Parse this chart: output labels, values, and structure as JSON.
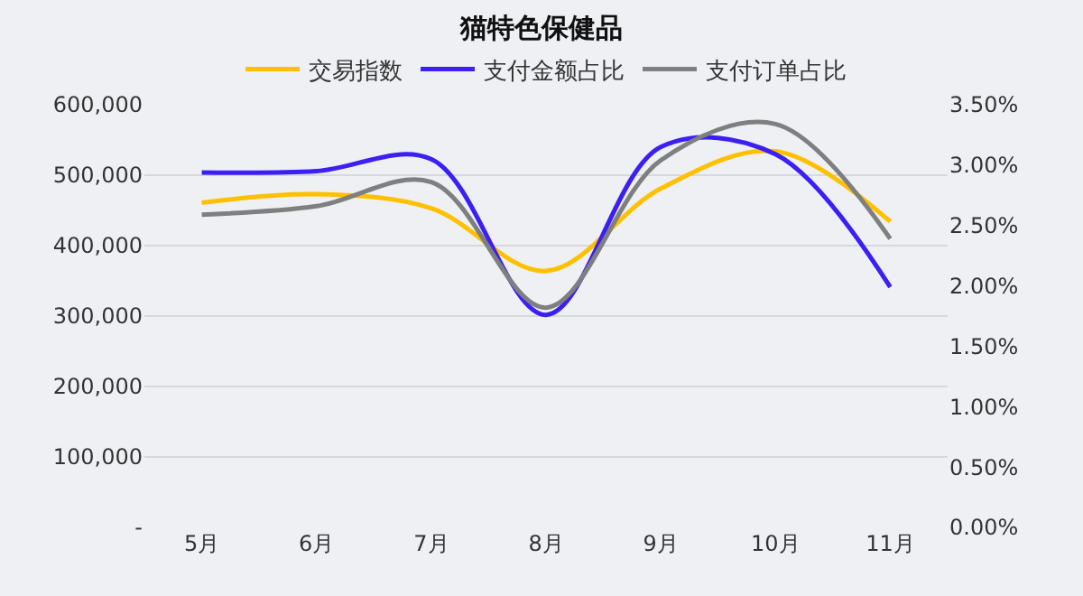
{
  "chart_data": {
    "type": "line",
    "title": "猫特色保健品",
    "categories": [
      "5月",
      "6月",
      "7月",
      "8月",
      "9月",
      "10月",
      "11月"
    ],
    "series": [
      {
        "name": "交易指数",
        "color": "#ffc000",
        "values": [
          461000,
          473000,
          453000,
          364000,
          481000,
          534000,
          434000
        ]
      },
      {
        "name": "支付金额占比",
        "color": "#3b1ff5",
        "axis": "y2",
        "values": [
          2.94,
          2.95,
          3.05,
          1.76,
          3.15,
          3.09,
          1.99
        ]
      },
      {
        "name": "支付订单占比",
        "color": "#7f7f7f",
        "axis": "y2",
        "values": [
          2.59,
          2.66,
          2.86,
          1.82,
          3.04,
          3.34,
          2.39
        ]
      }
    ],
    "ylim": [
      0,
      600000
    ],
    "yticks": [
      {
        "value": 0,
        "label": "-"
      },
      {
        "value": 100000,
        "label": "100,000"
      },
      {
        "value": 200000,
        "label": "200,000"
      },
      {
        "value": 300000,
        "label": "300,000"
      },
      {
        "value": 400000,
        "label": "400,000"
      },
      {
        "value": 500000,
        "label": "500,000"
      },
      {
        "value": 600000,
        "label": "600,000"
      }
    ],
    "y2lim": [
      0,
      3.5
    ],
    "y2ticks": [
      {
        "value": 0,
        "label": "0.00%"
      },
      {
        "value": 0.5,
        "label": "0.50%"
      },
      {
        "value": 1,
        "label": "1.00%"
      },
      {
        "value": 1.5,
        "label": "1.50%"
      },
      {
        "value": 2,
        "label": "2.00%"
      },
      {
        "value": 2.5,
        "label": "2.50%"
      },
      {
        "value": 3,
        "label": "3.00%"
      },
      {
        "value": 3.5,
        "label": "3.50%"
      }
    ],
    "grid": "y",
    "legend": "top",
    "marker": "none",
    "line_style": "solid"
  }
}
